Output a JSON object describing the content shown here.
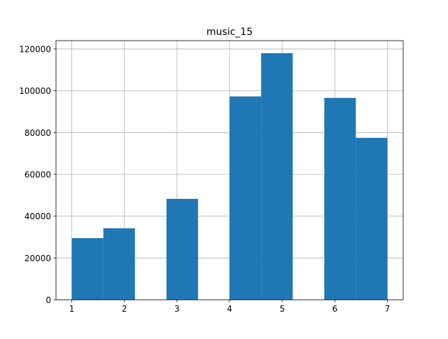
{
  "chart_data": {
    "type": "bar",
    "title": "music_15",
    "xlabel": "",
    "ylabel": "",
    "xlim": [
      0.7,
      7.3
    ],
    "ylim": [
      0,
      124000
    ],
    "grid": true,
    "bar_color": "#1f77b4",
    "bins": [
      {
        "x0": 1.0,
        "x1": 1.6,
        "value": 29500
      },
      {
        "x0": 1.6,
        "x1": 2.2,
        "value": 34200
      },
      {
        "x0": 2.2,
        "x1": 2.8,
        "value": 0
      },
      {
        "x0": 2.8,
        "x1": 3.4,
        "value": 48300
      },
      {
        "x0": 3.4,
        "x1": 4.0,
        "value": 0
      },
      {
        "x0": 4.0,
        "x1": 4.6,
        "value": 97300
      },
      {
        "x0": 4.6,
        "x1": 5.2,
        "value": 118000
      },
      {
        "x0": 5.2,
        "x1": 5.8,
        "value": 0
      },
      {
        "x0": 5.8,
        "x1": 6.4,
        "value": 96600
      },
      {
        "x0": 6.4,
        "x1": 7.0,
        "value": 77500
      }
    ],
    "x_ticks": [
      1,
      2,
      3,
      4,
      5,
      6,
      7
    ],
    "x_tick_labels": [
      "1",
      "2",
      "3",
      "4",
      "5",
      "6",
      "7"
    ],
    "y_ticks": [
      0,
      20000,
      40000,
      60000,
      80000,
      100000,
      120000
    ],
    "y_tick_labels": [
      "0",
      "20000",
      "40000",
      "60000",
      "80000",
      "100000",
      "120000"
    ]
  }
}
